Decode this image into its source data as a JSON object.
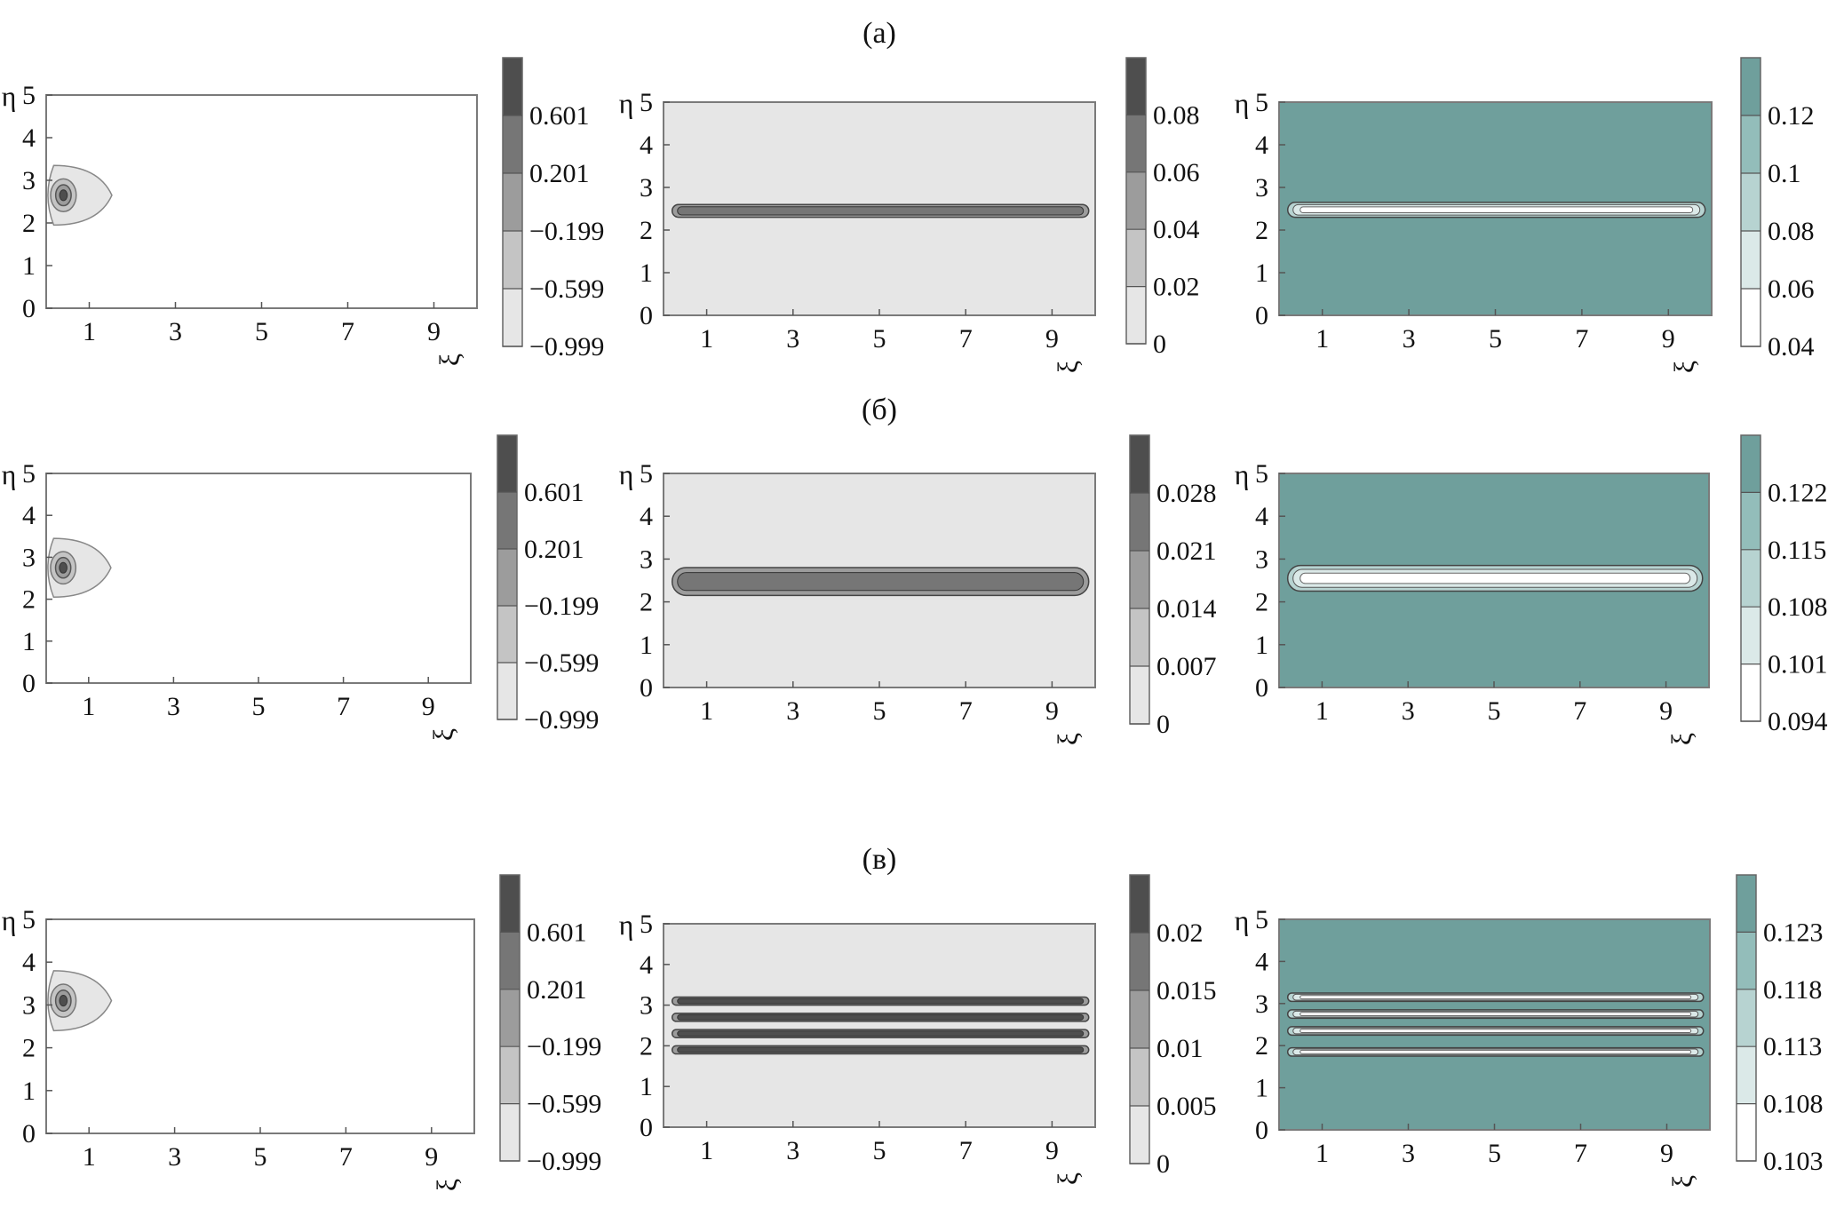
{
  "rows": [
    {
      "label": "(а)"
    },
    {
      "label": "(б)"
    },
    {
      "label": "(в)"
    }
  ],
  "colors": {
    "frame": "#7a7a7a",
    "white": "#ffffff",
    "light_gray": "#e6e6e6",
    "gray_levels": [
      "#e6e6e6",
      "#c4c4c4",
      "#9c9c9c",
      "#767676",
      "#4e4e4e"
    ],
    "teal_levels": [
      "#ffffff",
      "#dbe9e8",
      "#b7d3d1",
      "#93bdba",
      "#6f9f9c"
    ],
    "teal_bg": "#6f9f9c"
  },
  "chart_data": [
    {
      "type": "contour",
      "row": 0,
      "col": 0,
      "xlabel": "ξ",
      "ylabel": "η",
      "xlim": [
        0,
        10
      ],
      "ylim": [
        0,
        5
      ],
      "xticks": [
        1,
        3,
        5,
        7,
        9
      ],
      "yticks": [
        0,
        1,
        2,
        3,
        4,
        5
      ],
      "feature": "drop",
      "center": [
        0.4,
        2.65
      ],
      "colorbar": {
        "palette": "gray",
        "labels": [
          "0.601",
          "0.201",
          "−0.199",
          "−0.599",
          "−0.999"
        ]
      }
    },
    {
      "type": "contour",
      "row": 0,
      "col": 1,
      "xlabel": "ξ",
      "ylabel": "η",
      "xlim": [
        0,
        10
      ],
      "ylim": [
        0,
        5
      ],
      "xticks": [
        1,
        3,
        5,
        7,
        9
      ],
      "yticks": [
        0,
        1,
        2,
        3,
        4,
        5
      ],
      "feature": "band",
      "bands": [
        {
          "y0": 2.3,
          "y1": 2.6
        }
      ],
      "colorbar": {
        "palette": "gray",
        "labels": [
          "0.08",
          "0.06",
          "0.04",
          "0.02",
          "0"
        ]
      }
    },
    {
      "type": "contour",
      "row": 0,
      "col": 2,
      "xlabel": "ξ",
      "ylabel": "η",
      "xlim": [
        0,
        10
      ],
      "ylim": [
        0,
        5
      ],
      "xticks": [
        1,
        3,
        5,
        7,
        9
      ],
      "yticks": [
        0,
        1,
        2,
        3,
        4,
        5
      ],
      "feature": "band",
      "bands": [
        {
          "y0": 2.3,
          "y1": 2.65
        }
      ],
      "colorbar": {
        "palette": "teal",
        "labels": [
          "0.12",
          "0.1",
          "0.08",
          "0.06",
          "0.04"
        ]
      }
    },
    {
      "type": "contour",
      "row": 1,
      "col": 0,
      "xlabel": "ξ",
      "ylabel": "η",
      "xlim": [
        0,
        10
      ],
      "ylim": [
        0,
        5
      ],
      "xticks": [
        1,
        3,
        5,
        7,
        9
      ],
      "yticks": [
        0,
        1,
        2,
        3,
        4,
        5
      ],
      "feature": "drop",
      "center": [
        0.4,
        2.75
      ],
      "colorbar": {
        "palette": "gray",
        "labels": [
          "0.601",
          "0.201",
          "−0.199",
          "−0.599",
          "−0.999"
        ]
      }
    },
    {
      "type": "contour",
      "row": 1,
      "col": 1,
      "xlabel": "ξ",
      "ylabel": "η",
      "xlim": [
        0,
        10
      ],
      "ylim": [
        0,
        5
      ],
      "xticks": [
        1,
        3,
        5,
        7,
        9
      ],
      "yticks": [
        0,
        1,
        2,
        3,
        4,
        5
      ],
      "feature": "band",
      "bands": [
        {
          "y0": 2.15,
          "y1": 2.8
        }
      ],
      "colorbar": {
        "palette": "gray",
        "labels": [
          "0.028",
          "0.021",
          "0.014",
          "0.007",
          "0"
        ]
      }
    },
    {
      "type": "contour",
      "row": 1,
      "col": 2,
      "xlabel": "ξ",
      "ylabel": "η",
      "xlim": [
        0,
        10
      ],
      "ylim": [
        0,
        5
      ],
      "xticks": [
        1,
        3,
        5,
        7,
        9
      ],
      "yticks": [
        0,
        1,
        2,
        3,
        4,
        5
      ],
      "feature": "band",
      "bands": [
        {
          "y0": 2.25,
          "y1": 2.85
        }
      ],
      "colorbar": {
        "palette": "teal",
        "labels": [
          "0.122",
          "0.115",
          "0.108",
          "0.101",
          "0.094"
        ]
      }
    },
    {
      "type": "contour",
      "row": 2,
      "col": 0,
      "xlabel": "ξ",
      "ylabel": "η",
      "xlim": [
        0,
        10
      ],
      "ylim": [
        0,
        5
      ],
      "xticks": [
        1,
        3,
        5,
        7,
        9
      ],
      "yticks": [
        0,
        1,
        2,
        3,
        4,
        5
      ],
      "feature": "drop",
      "center": [
        0.4,
        3.1
      ],
      "colorbar": {
        "palette": "gray",
        "labels": [
          "0.601",
          "0.201",
          "−0.199",
          "−0.599",
          "−0.999"
        ]
      }
    },
    {
      "type": "contour",
      "row": 2,
      "col": 1,
      "xlabel": "ξ",
      "ylabel": "η",
      "xlim": [
        0,
        10
      ],
      "ylim": [
        0,
        5
      ],
      "xticks": [
        1,
        3,
        5,
        7,
        9
      ],
      "yticks": [
        0,
        1,
        2,
        3,
        4,
        5
      ],
      "feature": "band",
      "bands": [
        {
          "y0": 3.0,
          "y1": 3.2
        },
        {
          "y0": 2.6,
          "y1": 2.8
        },
        {
          "y0": 2.2,
          "y1": 2.4
        },
        {
          "y0": 1.8,
          "y1": 2.0
        }
      ],
      "colorbar": {
        "palette": "gray",
        "labels": [
          "0.02",
          "0.015",
          "0.01",
          "0.005",
          "0"
        ]
      }
    },
    {
      "type": "contour",
      "row": 2,
      "col": 2,
      "xlabel": "ξ",
      "ylabel": "η",
      "xlim": [
        0,
        10
      ],
      "ylim": [
        0,
        5
      ],
      "xticks": [
        1,
        3,
        5,
        7,
        9
      ],
      "yticks": [
        0,
        1,
        2,
        3,
        4,
        5
      ],
      "feature": "band",
      "bands": [
        {
          "y0": 3.05,
          "y1": 3.25
        },
        {
          "y0": 2.65,
          "y1": 2.85
        },
        {
          "y0": 2.25,
          "y1": 2.45
        },
        {
          "y0": 1.75,
          "y1": 1.95
        }
      ],
      "colorbar": {
        "palette": "teal",
        "labels": [
          "0.123",
          "0.118",
          "0.113",
          "0.108",
          "0.103"
        ]
      }
    }
  ]
}
